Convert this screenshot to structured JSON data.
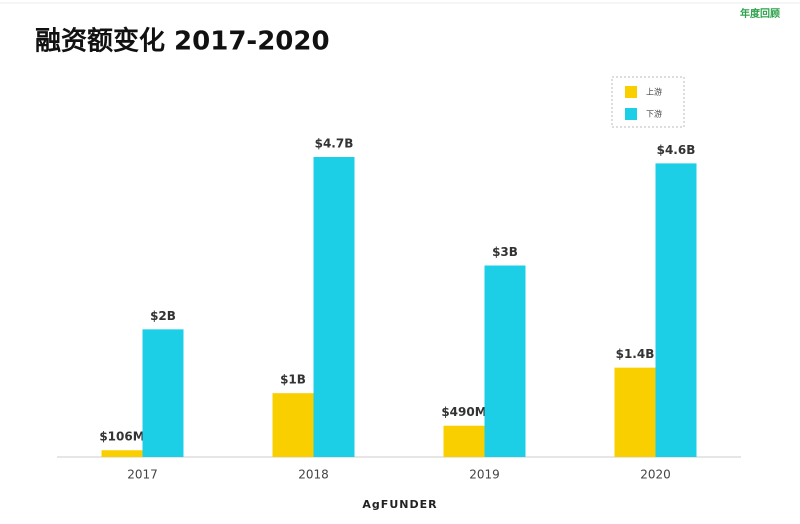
{
  "header": {
    "badge": "年度回顾",
    "logo": "AgFUNDER"
  },
  "chart_data": {
    "type": "bar",
    "title": "融资额变化 2017-2020",
    "categories": [
      "2017",
      "2018",
      "2019",
      "2020"
    ],
    "series": [
      {
        "name": "上游",
        "color": "#f9cf00",
        "values": [
          106,
          1000,
          490,
          1400
        ],
        "value_labels": [
          "$106M",
          "$1B",
          "$490M",
          "$1.4B"
        ]
      },
      {
        "name": "下游",
        "color": "#1ccfe6",
        "values": [
          2000,
          4700,
          3000,
          4600
        ],
        "value_labels": [
          "$2B",
          "$4.7B",
          "$3B",
          "$4.6B"
        ]
      }
    ],
    "legend": "top-right"
  }
}
